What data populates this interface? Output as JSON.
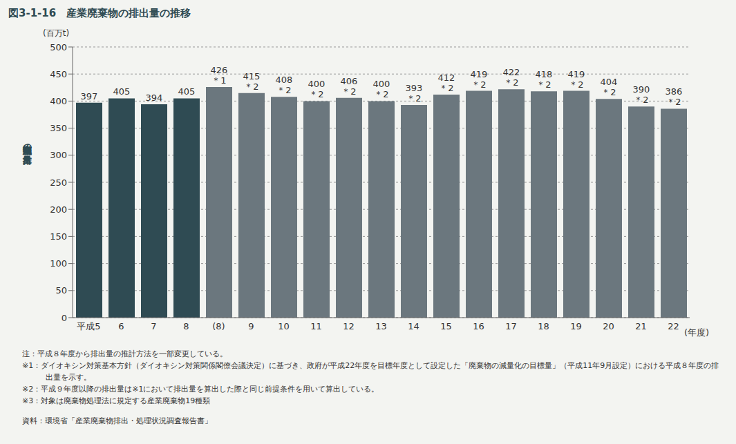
{
  "chart_data": {
    "type": "bar",
    "title": "図3-1-16　産業廃棄物の排出量の推移",
    "y_label": "産業廃棄物の排出量",
    "y_unit": "(百万t)",
    "x_unit": "(年度)",
    "categories": [
      "平成5",
      "6",
      "7",
      "8",
      "(8)",
      "9",
      "10",
      "11",
      "12",
      "13",
      "14",
      "15",
      "16",
      "17",
      "18",
      "19",
      "20",
      "21",
      "22"
    ],
    "values": [
      397,
      405,
      394,
      405,
      426,
      415,
      408,
      400,
      406,
      400,
      393,
      412,
      419,
      422,
      418,
      419,
      404,
      390,
      386
    ],
    "bar_notes": [
      null,
      null,
      null,
      null,
      "＊1",
      "＊2",
      "＊2",
      "＊2",
      "＊2",
      "＊2",
      "＊2",
      "＊2",
      "＊2",
      "＊2",
      "＊2",
      "＊2",
      "＊2",
      "＊2",
      "＊2"
    ],
    "colors": [
      "#2f4b53",
      "#2f4b53",
      "#2f4b53",
      "#2f4b53",
      "#6b777e",
      "#6b777e",
      "#6b777e",
      "#6b777e",
      "#6b777e",
      "#6b777e",
      "#6b777e",
      "#6b777e",
      "#6b777e",
      "#6b777e",
      "#6b777e",
      "#6b777e",
      "#6b777e",
      "#6b777e",
      "#6b777e"
    ],
    "ylim": [
      0,
      500
    ],
    "yticks": [
      0,
      50,
      100,
      150,
      200,
      250,
      300,
      350,
      400,
      450,
      500
    ],
    "grid": true,
    "data_labels": true,
    "notes": [
      "注：平成８年度から排出量の推計方法を一部変更している。",
      "※1：ダイオキシン対策基本方針（ダイオキシン対策関係閣僚会議決定）に基づき、政府が平成22年度を目標年度として設定した「廃棄物の減量化の目標量」（平成11年9月設定）における平成８年度の排出量を示す。",
      "※2：平成９年度以降の排出量は※1において排出量を算出した際と同じ前提条件を用いて算出している。",
      "※3：対象は廃棄物処理法に規定する産業廃棄物19種類"
    ],
    "source": "資料：環境省「産業廃棄物排出・処理状況調査報告書」"
  }
}
